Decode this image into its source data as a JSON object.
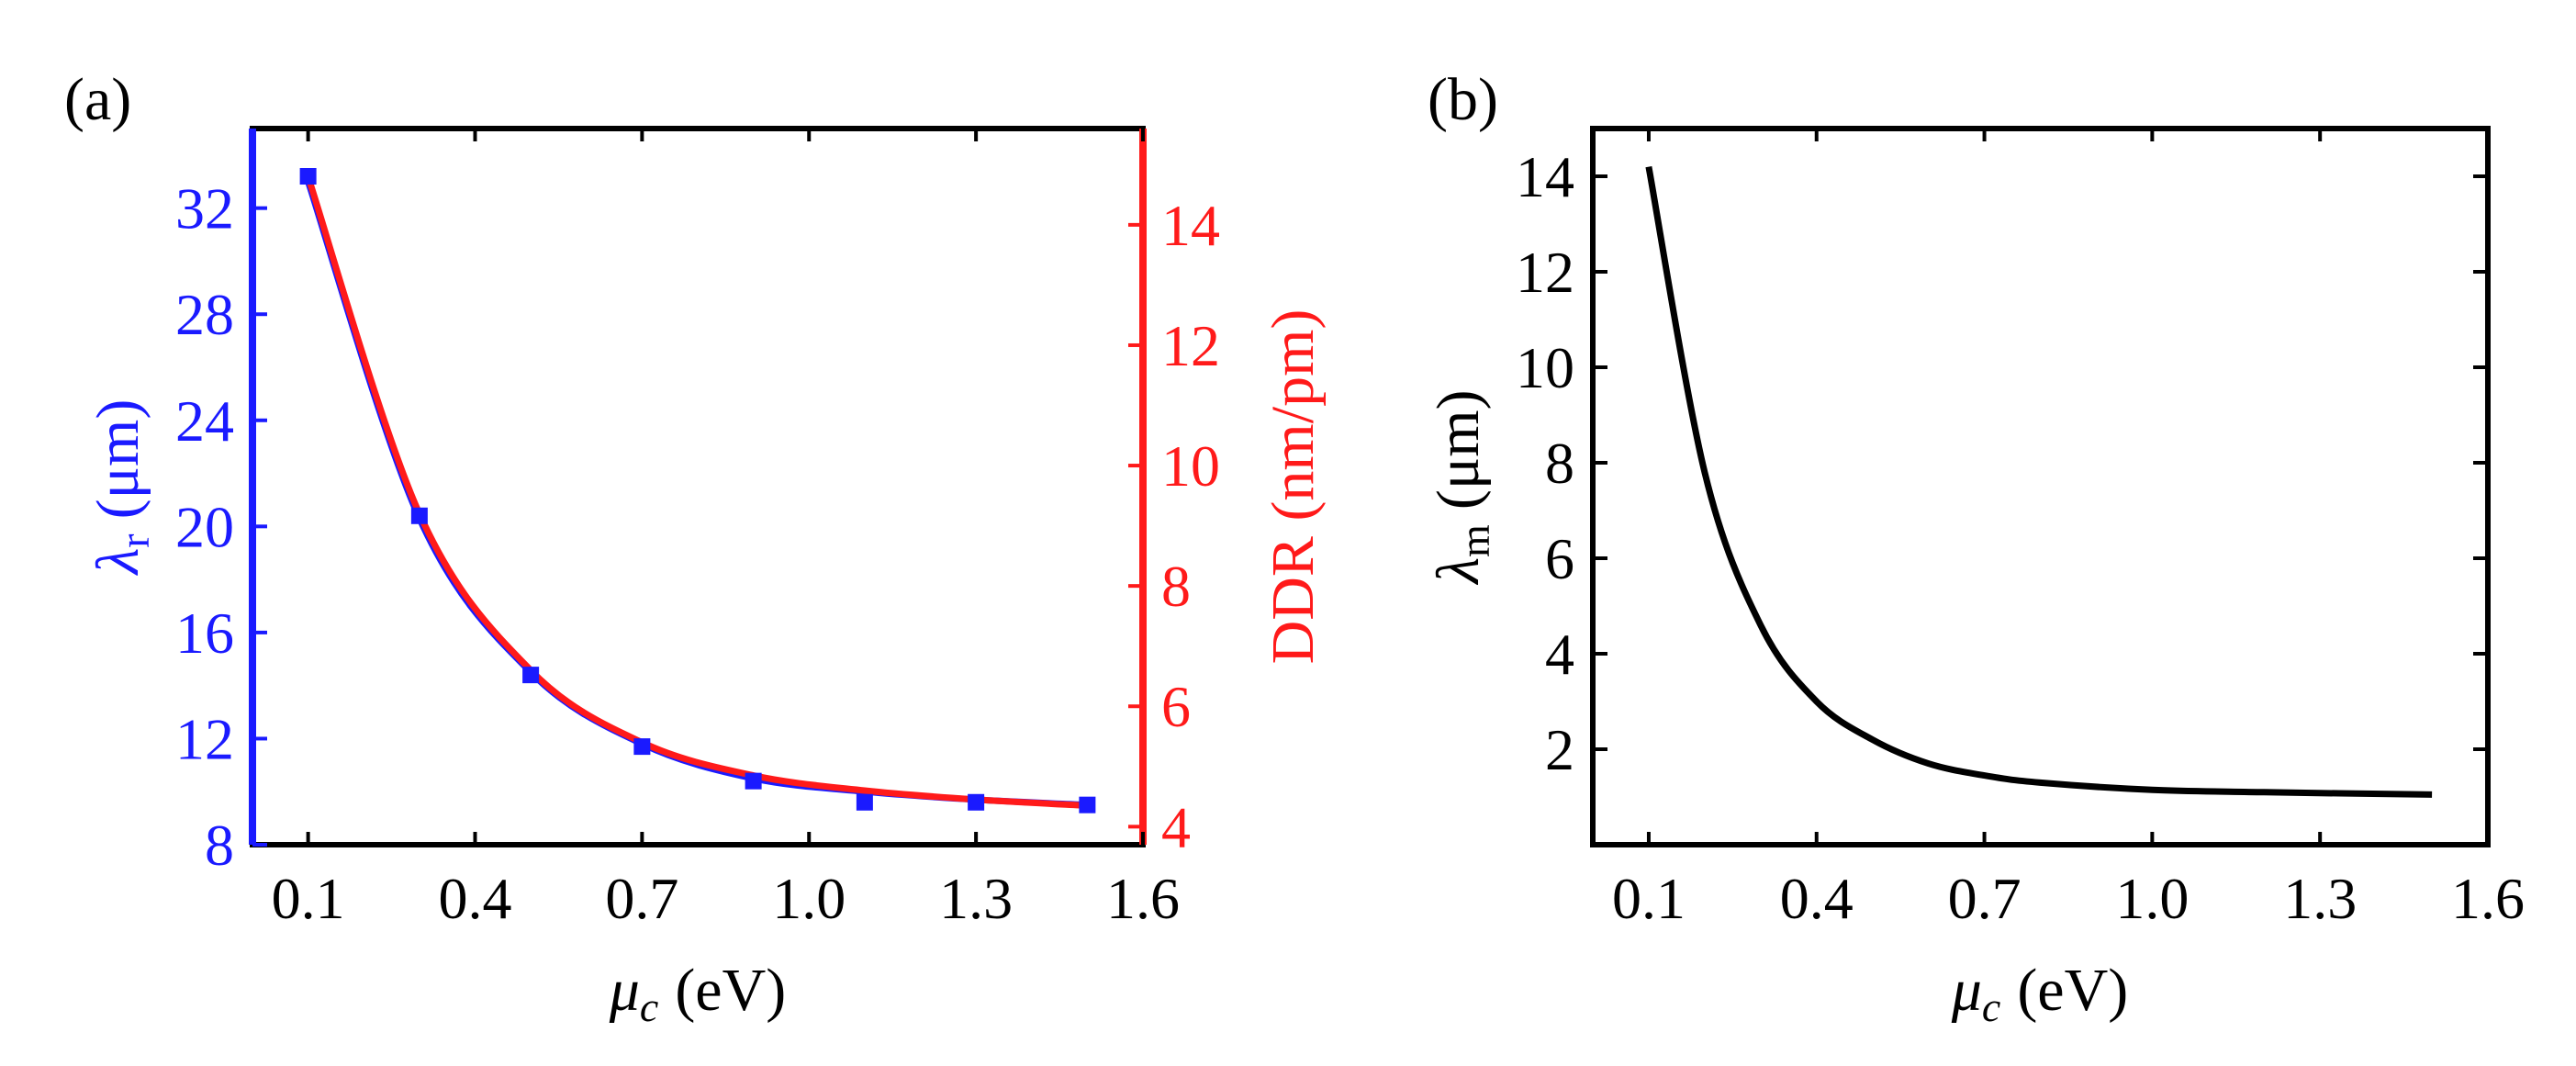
{
  "colors": {
    "blue": "#1a1aff",
    "red": "#ff1a1a",
    "black": "#000000"
  },
  "chart_data": [
    {
      "panel_label": "(a)",
      "type": "line",
      "x": [
        0.1,
        0.3,
        0.5,
        0.7,
        0.9,
        1.1,
        1.3,
        1.5
      ],
      "xlim": [
        0.0,
        1.6
      ],
      "xticks": [
        "0.1",
        "0.4",
        "0.7",
        "1.0",
        "1.3",
        "1.6"
      ],
      "xtick_values": [
        0.1,
        0.4,
        0.7,
        1.0,
        1.3,
        1.6
      ],
      "xlabel_symbol": "μ",
      "xlabel_sub": "c",
      "xlabel_unit": "(eV)",
      "series": [
        {
          "name": "λr",
          "axis": "left",
          "color": "#1a1aff",
          "markers": [
            33.2,
            20.4,
            14.4,
            11.7,
            10.4,
            9.6,
            9.6,
            9.5
          ],
          "curve": [
            33.0,
            20.3,
            14.5,
            11.8,
            10.5,
            10.0,
            9.7,
            9.5
          ]
        },
        {
          "name": "DDR",
          "axis": "right",
          "color": "#ff1a1a",
          "curve": [
            14.8,
            9.2,
            6.6,
            5.4,
            4.85,
            4.6,
            4.45,
            4.35
          ]
        }
      ],
      "ylim_left": [
        8,
        35
      ],
      "yticks_left": [
        "8",
        "12",
        "16",
        "20",
        "24",
        "28",
        "32"
      ],
      "ytick_values_left": [
        8,
        12,
        16,
        20,
        24,
        28,
        32
      ],
      "ylabel_left_symbol": "λ",
      "ylabel_left_sub": "r",
      "ylabel_left_unit": "(μm)",
      "ylim_right": [
        3.7,
        15.6
      ],
      "yticks_right": [
        "4",
        "6",
        "8",
        "10",
        "12",
        "14"
      ],
      "ytick_values_right": [
        4,
        6,
        8,
        10,
        12,
        14
      ],
      "ylabel_right": "DDR (nm/pm)"
    },
    {
      "panel_label": "(b)",
      "type": "line",
      "x": [
        0.1,
        0.2,
        0.3,
        0.4,
        0.5,
        0.6,
        0.7,
        0.8,
        1.0,
        1.2,
        1.5
      ],
      "xlim": [
        0.0,
        1.6
      ],
      "xticks": [
        "0.1",
        "0.4",
        "0.7",
        "1.0",
        "1.3",
        "1.6"
      ],
      "xtick_values": [
        0.1,
        0.4,
        0.7,
        1.0,
        1.3,
        1.6
      ],
      "xlabel_symbol": "μ",
      "xlabel_sub": "c",
      "xlabel_unit": "(eV)",
      "series": [
        {
          "name": "λm",
          "color": "#000000",
          "values": [
            14.2,
            7.8,
            4.6,
            3.0,
            2.2,
            1.7,
            1.45,
            1.3,
            1.15,
            1.1,
            1.05
          ]
        }
      ],
      "ylim": [
        0.0,
        15.0
      ],
      "yticks": [
        "2",
        "4",
        "6",
        "8",
        "10",
        "12",
        "14"
      ],
      "ytick_values": [
        2,
        4,
        6,
        8,
        10,
        12,
        14
      ],
      "ylabel_symbol": "λ",
      "ylabel_sub": "m",
      "ylabel_unit": "(μm)"
    }
  ]
}
